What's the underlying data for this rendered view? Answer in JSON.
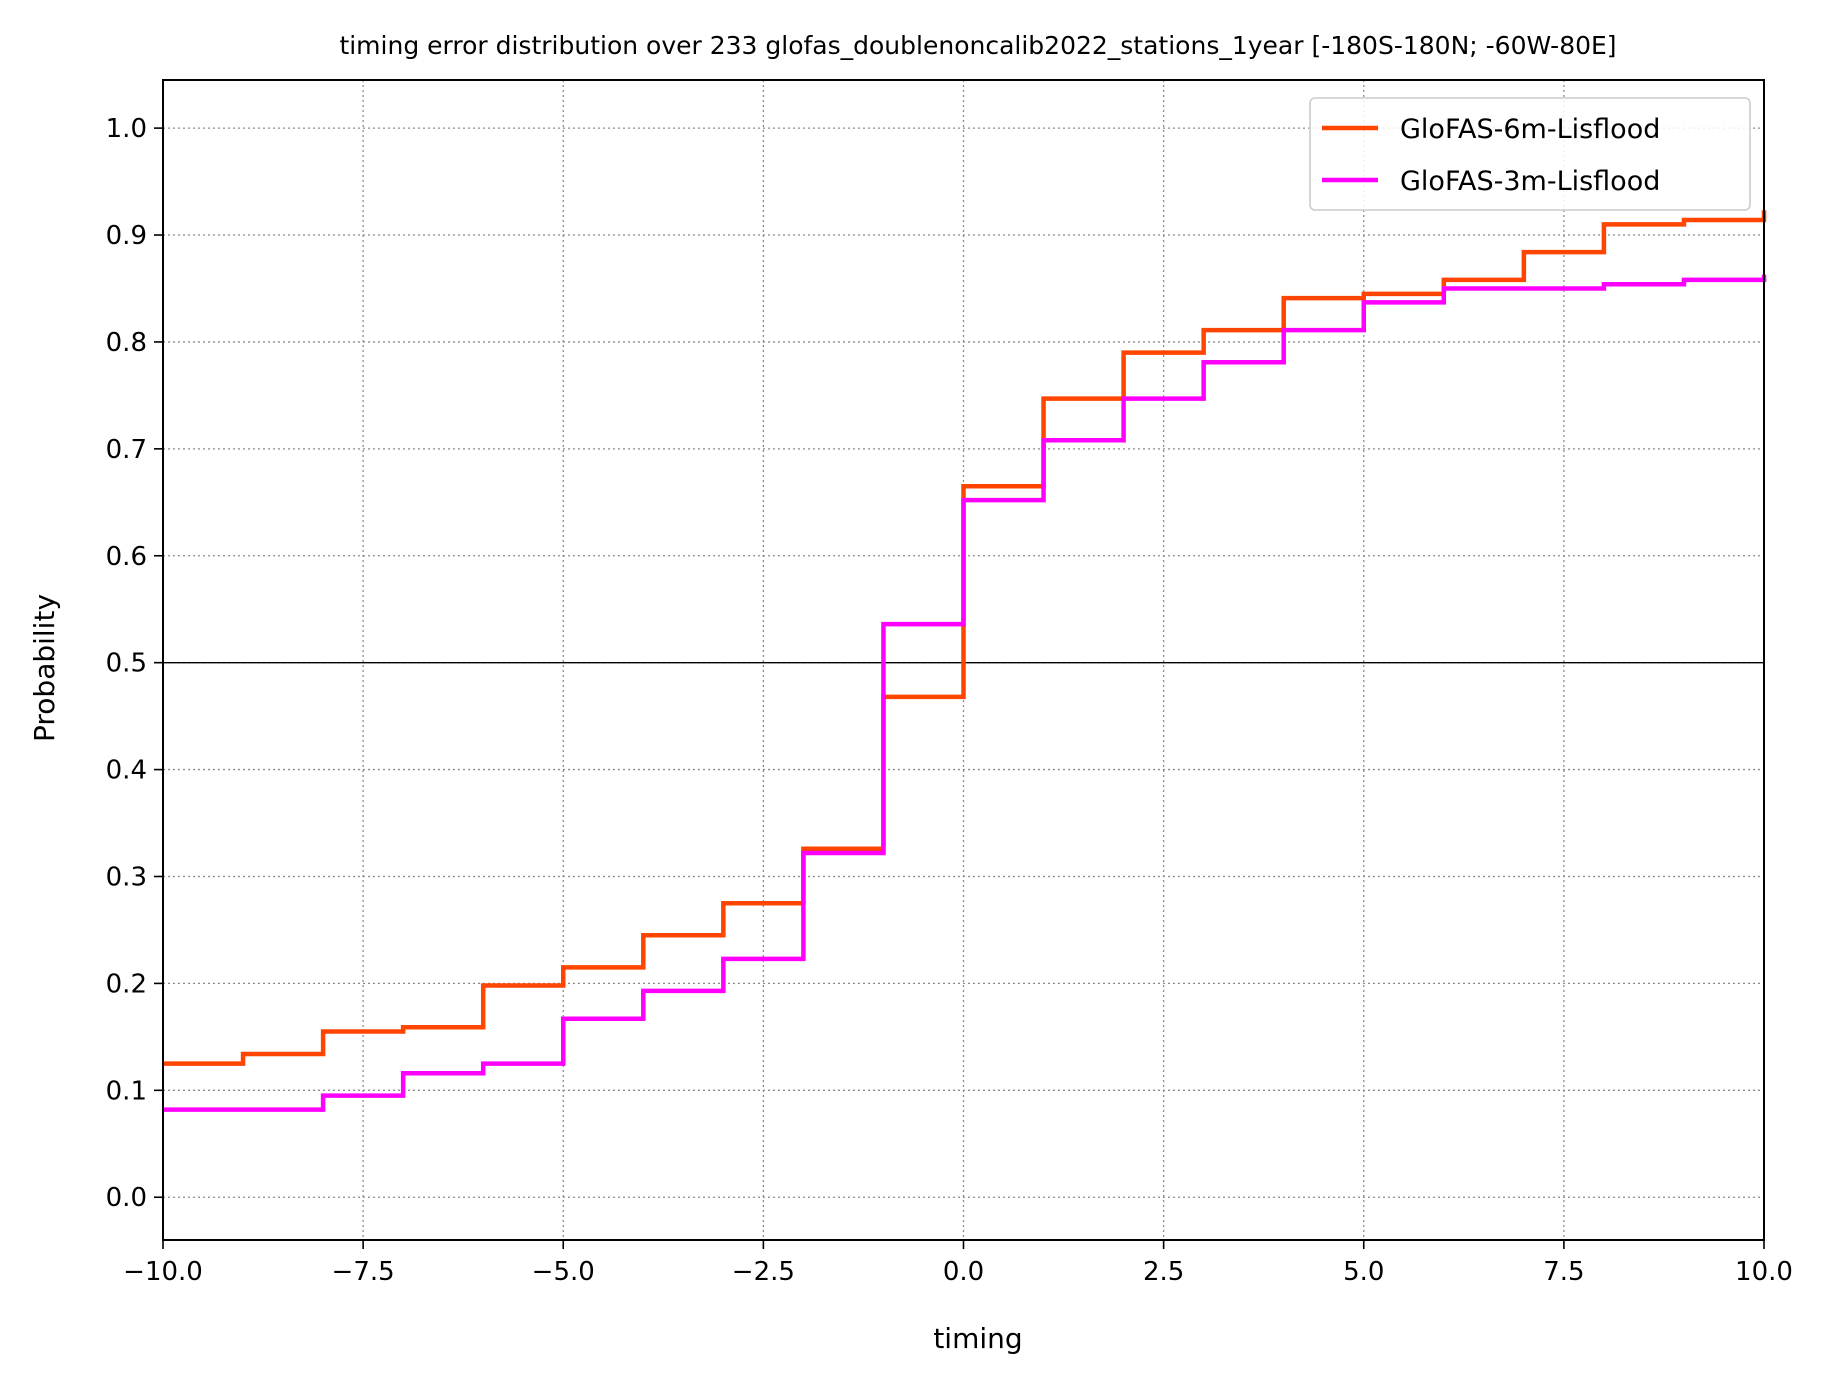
{
  "chart_data": {
    "type": "line",
    "step": "post",
    "title": "timing error distribution over 233 glofas_doublenoncalib2022_stations_1year [-180S-180N; -60W-80E]",
    "xlabel": "timing",
    "ylabel": "Probability",
    "xlim": [
      -10,
      10
    ],
    "ylim": [
      -0.04,
      1.045
    ],
    "xticks": [
      -10,
      -7.5,
      -5,
      -2.5,
      0,
      2.5,
      5,
      7.5,
      10
    ],
    "xtick_labels": [
      "−10.0",
      "−7.5",
      "−5.0",
      "−2.5",
      "0.0",
      "2.5",
      "5.0",
      "7.5",
      "10.0"
    ],
    "yticks": [
      0,
      0.1,
      0.2,
      0.3,
      0.4,
      0.5,
      0.6,
      0.7,
      0.8,
      0.9,
      1.0
    ],
    "ytick_labels": [
      "0.0",
      "0.1",
      "0.2",
      "0.3",
      "0.4",
      "0.5",
      "0.6",
      "0.7",
      "0.8",
      "0.9",
      "1.0"
    ],
    "grid": true,
    "reference_line_y": 0.5,
    "legend_position": "top-right",
    "x": [
      -10,
      -9,
      -8,
      -7,
      -6,
      -5,
      -4,
      -3,
      -2,
      -1,
      0,
      1,
      2,
      3,
      4,
      5,
      6,
      7,
      8,
      9,
      10
    ],
    "series": [
      {
        "name": "GloFAS-6m-Lisflood",
        "color": "#ff4500",
        "values": [
          0.125,
          0.134,
          0.155,
          0.159,
          0.198,
          0.215,
          0.245,
          0.275,
          0.326,
          0.468,
          0.665,
          0.747,
          0.79,
          0.811,
          0.841,
          0.845,
          0.858,
          0.884,
          0.91,
          0.914,
          0.923
        ]
      },
      {
        "name": "GloFAS-3m-Lisflood",
        "color": "#ff00ff",
        "values": [
          0.082,
          0.082,
          0.095,
          0.116,
          0.125,
          0.167,
          0.193,
          0.223,
          0.322,
          0.536,
          0.652,
          0.708,
          0.747,
          0.781,
          0.811,
          0.837,
          0.85,
          0.85,
          0.854,
          0.858,
          0.863
        ]
      }
    ]
  }
}
